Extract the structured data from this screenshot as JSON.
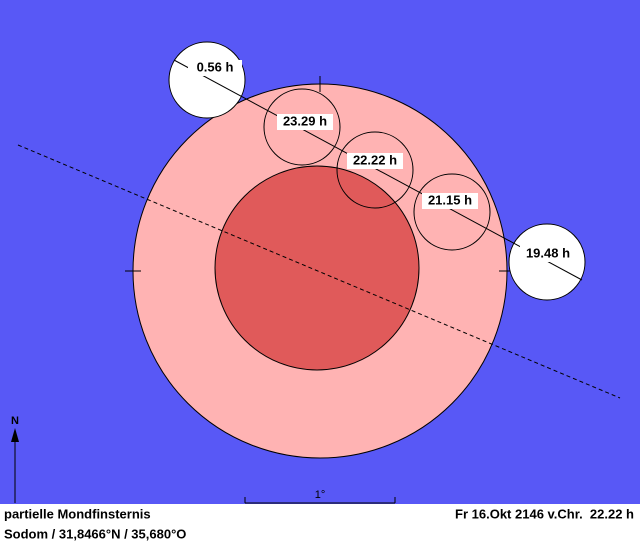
{
  "diagram": {
    "moon_positions": [
      {
        "label": "0.56 h"
      },
      {
        "label": "23.29 h"
      },
      {
        "label": "22.22 h"
      },
      {
        "label": "21.15 h"
      },
      {
        "label": "19.48 h"
      }
    ],
    "north_label": "N",
    "scale_label": "1°",
    "footer": {
      "eclipse_type": "partielle Mondfinsternis",
      "location": "Sodom / 31,8466°N / 35,680°O",
      "datetime": "Fr 16.Okt 2146 v.Chr.  22.22 h"
    }
  }
}
